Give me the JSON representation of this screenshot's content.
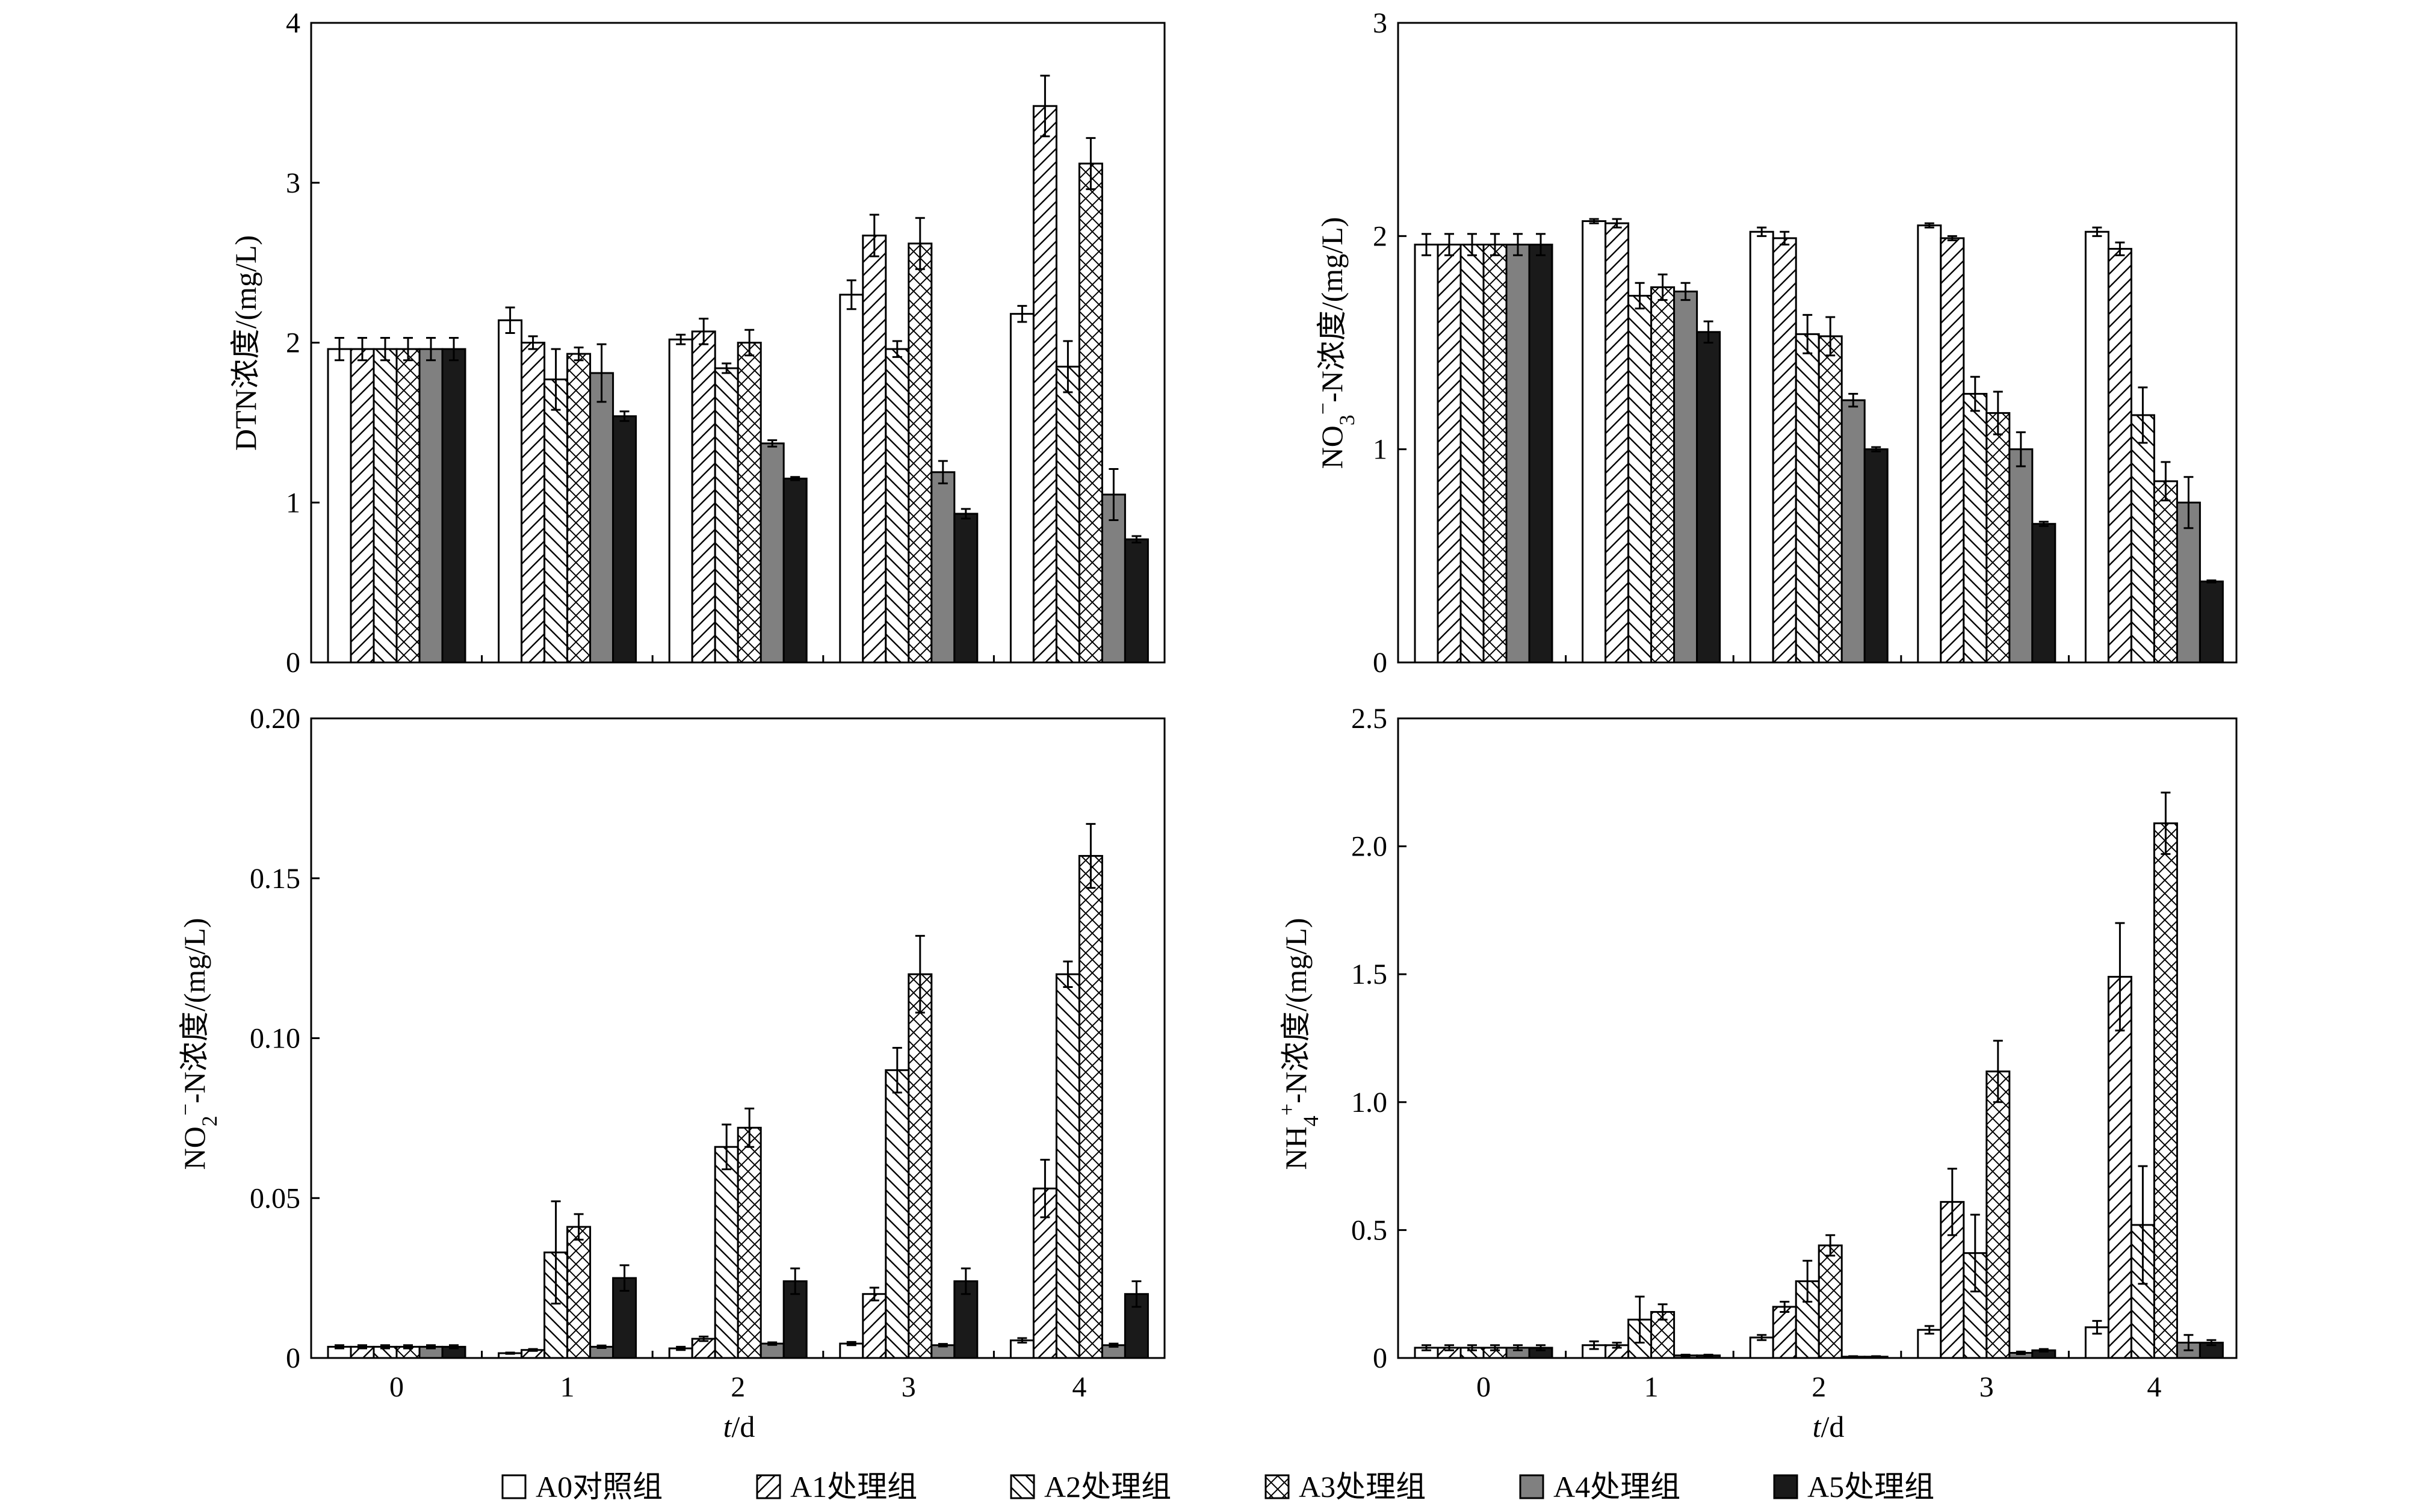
{
  "legend": [
    {
      "label": "A0对照组",
      "fill": "#ffffff",
      "pattern": "none"
    },
    {
      "label": "A1处理组",
      "fill": "#ffffff",
      "pattern": "hatch-right"
    },
    {
      "label": "A2处理组",
      "fill": "#ffffff",
      "pattern": "hatch-left"
    },
    {
      "label": "A3处理组",
      "fill": "#ffffff",
      "pattern": "cross"
    },
    {
      "label": "A4处理组",
      "fill": "#808080",
      "pattern": "none"
    },
    {
      "label": "A5处理组",
      "fill": "#1a1a1a",
      "pattern": "none"
    }
  ],
  "xlabel_italic": "t",
  "xlabel_rest": "/d",
  "chart_data": [
    {
      "type": "bar",
      "ylabel": "DTN浓度/(mg/L)",
      "ylim": [
        0,
        4
      ],
      "yticks": [
        "0",
        "1",
        "2",
        "3",
        "4"
      ],
      "categories": [
        "0",
        "1",
        "2",
        "3",
        "4"
      ],
      "series": [
        {
          "name": "A0对照组",
          "values": [
            1.96,
            2.14,
            2.02,
            2.3,
            2.18
          ],
          "errors": [
            0.07,
            0.08,
            0.03,
            0.09,
            0.05
          ]
        },
        {
          "name": "A1处理组",
          "values": [
            1.96,
            2.0,
            2.07,
            2.67,
            3.48
          ],
          "errors": [
            0.07,
            0.04,
            0.08,
            0.13,
            0.19
          ]
        },
        {
          "name": "A2处理组",
          "values": [
            1.96,
            1.77,
            1.84,
            1.96,
            1.85
          ],
          "errors": [
            0.07,
            0.19,
            0.03,
            0.05,
            0.16
          ]
        },
        {
          "name": "A3处理组",
          "values": [
            1.96,
            1.93,
            2.0,
            2.62,
            3.12
          ],
          "errors": [
            0.07,
            0.04,
            0.08,
            0.16,
            0.16
          ]
        },
        {
          "name": "A4处理组",
          "values": [
            1.96,
            1.81,
            1.37,
            1.19,
            1.05
          ],
          "errors": [
            0.07,
            0.18,
            0.02,
            0.07,
            0.16
          ]
        },
        {
          "name": "A5处理组",
          "values": [
            1.96,
            1.54,
            1.15,
            0.93,
            0.77
          ],
          "errors": [
            0.07,
            0.03,
            0.01,
            0.03,
            0.02
          ]
        }
      ]
    },
    {
      "type": "bar",
      "ylabel_main": "NO",
      "ylabel_sub": "3",
      "ylabel_sup": "−",
      "ylabel_tail": "-N浓度/(mg/L)",
      "ylim": [
        0,
        3
      ],
      "yticks": [
        "0",
        "1",
        "2",
        "3"
      ],
      "categories": [
        "0",
        "1",
        "2",
        "3",
        "4"
      ],
      "series": [
        {
          "name": "A0对照组",
          "values": [
            1.96,
            2.07,
            2.02,
            2.05,
            2.02
          ],
          "errors": [
            0.05,
            0.01,
            0.02,
            0.01,
            0.02
          ]
        },
        {
          "name": "A1处理组",
          "values": [
            1.96,
            2.06,
            1.99,
            1.99,
            1.94
          ],
          "errors": [
            0.05,
            0.02,
            0.03,
            0.01,
            0.03
          ]
        },
        {
          "name": "A2处理组",
          "values": [
            1.96,
            1.72,
            1.54,
            1.26,
            1.16
          ],
          "errors": [
            0.05,
            0.06,
            0.09,
            0.08,
            0.13
          ]
        },
        {
          "name": "A3处理组",
          "values": [
            1.96,
            1.76,
            1.53,
            1.17,
            0.85
          ],
          "errors": [
            0.05,
            0.06,
            0.09,
            0.1,
            0.09
          ]
        },
        {
          "name": "A4处理组",
          "values": [
            1.96,
            1.74,
            1.23,
            1.0,
            0.75
          ],
          "errors": [
            0.05,
            0.04,
            0.03,
            0.08,
            0.12
          ]
        },
        {
          "name": "A5处理组",
          "values": [
            1.96,
            1.55,
            1.0,
            0.65,
            0.38
          ],
          "errors": [
            0.05,
            0.05,
            0.01,
            0.01,
            0.005
          ]
        }
      ]
    },
    {
      "type": "bar",
      "ylabel_main": "NO",
      "ylabel_sub": "2",
      "ylabel_sup": "−",
      "ylabel_tail": "-N浓度/(mg/L)",
      "ylim": [
        0,
        0.2
      ],
      "yticks": [
        "0",
        "0.05",
        "0.10",
        "0.15",
        "0.20"
      ],
      "categories": [
        "0",
        "1",
        "2",
        "3",
        "4"
      ],
      "series": [
        {
          "name": "A0对照组",
          "values": [
            0.0035,
            0.0015,
            0.003,
            0.0045,
            0.0055
          ],
          "errors": [
            0.0005,
            0.0002,
            0.0005,
            0.0005,
            0.0007
          ]
        },
        {
          "name": "A1处理组",
          "values": [
            0.0035,
            0.0025,
            0.006,
            0.02,
            0.053
          ],
          "errors": [
            0.0005,
            0.0003,
            0.0007,
            0.002,
            0.009
          ]
        },
        {
          "name": "A2处理组",
          "values": [
            0.0035,
            0.033,
            0.066,
            0.09,
            0.12
          ],
          "errors": [
            0.0005,
            0.016,
            0.007,
            0.007,
            0.004
          ]
        },
        {
          "name": "A3处理组",
          "values": [
            0.0035,
            0.041,
            0.072,
            0.12,
            0.157
          ],
          "errors": [
            0.0005,
            0.004,
            0.006,
            0.012,
            0.01
          ]
        },
        {
          "name": "A4处理组",
          "values": [
            0.0035,
            0.0035,
            0.0045,
            0.004,
            0.004
          ],
          "errors": [
            0.0005,
            0.0004,
            0.0004,
            0.0004,
            0.0005
          ]
        },
        {
          "name": "A5处理组",
          "values": [
            0.0035,
            0.025,
            0.024,
            0.024,
            0.02
          ],
          "errors": [
            0.0005,
            0.004,
            0.004,
            0.004,
            0.004
          ]
        }
      ]
    },
    {
      "type": "bar",
      "ylabel_main": "NH",
      "ylabel_sub": "4",
      "ylabel_sup": "+",
      "ylabel_tail": "-N浓度/(mg/L)",
      "ylim": [
        0,
        2.5
      ],
      "yticks": [
        "0",
        "0.5",
        "1.0",
        "1.5",
        "2.0",
        "2.5"
      ],
      "categories": [
        "0",
        "1",
        "2",
        "3",
        "4"
      ],
      "series": [
        {
          "name": "A0对照组",
          "values": [
            0.04,
            0.05,
            0.08,
            0.11,
            0.12
          ],
          "errors": [
            0.01,
            0.015,
            0.01,
            0.015,
            0.025
          ]
        },
        {
          "name": "A1处理组",
          "values": [
            0.04,
            0.05,
            0.2,
            0.61,
            1.49
          ],
          "errors": [
            0.01,
            0.01,
            0.02,
            0.13,
            0.21
          ]
        },
        {
          "name": "A2处理组",
          "values": [
            0.04,
            0.15,
            0.3,
            0.41,
            0.52
          ],
          "errors": [
            0.01,
            0.09,
            0.08,
            0.15,
            0.23
          ]
        },
        {
          "name": "A3处理组",
          "values": [
            0.04,
            0.18,
            0.44,
            1.12,
            2.09
          ],
          "errors": [
            0.01,
            0.03,
            0.04,
            0.12,
            0.12
          ]
        },
        {
          "name": "A4处理组",
          "values": [
            0.04,
            0.01,
            0.005,
            0.02,
            0.06
          ],
          "errors": [
            0.01,
            0.003,
            0.002,
            0.005,
            0.03
          ]
        },
        {
          "name": "A5处理组",
          "values": [
            0.04,
            0.01,
            0.005,
            0.03,
            0.06
          ],
          "errors": [
            0.01,
            0.003,
            0.002,
            0.005,
            0.01
          ]
        }
      ]
    }
  ]
}
